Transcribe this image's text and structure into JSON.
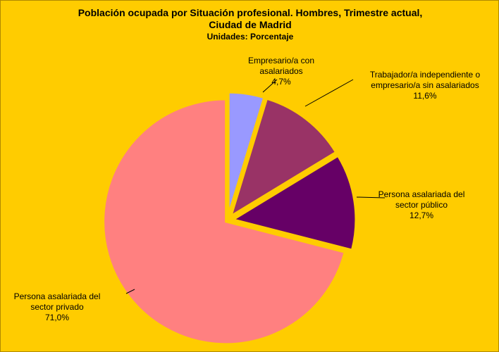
{
  "chart_data": {
    "type": "pie",
    "title": "Población ocupada por Situación profesional. Hombres, Trimestre actual, Ciudad de Madrid",
    "subtitle": "Unidades: Porcentaje",
    "categories": [
      "Empresario/a con asalariados",
      "Trabajador/a independiente o empresario/a sin asalariados",
      "Persona asalariada del sector público",
      "Persona asalariada del sector privado"
    ],
    "values": [
      4.7,
      11.6,
      12.7,
      71.0
    ],
    "value_labels": [
      "4,7%",
      "11,6%",
      "12,7%",
      "71,0%"
    ],
    "colors": [
      "#9999FF",
      "#993366",
      "#660066",
      "#FF8080"
    ],
    "background": "#FFCC00"
  }
}
